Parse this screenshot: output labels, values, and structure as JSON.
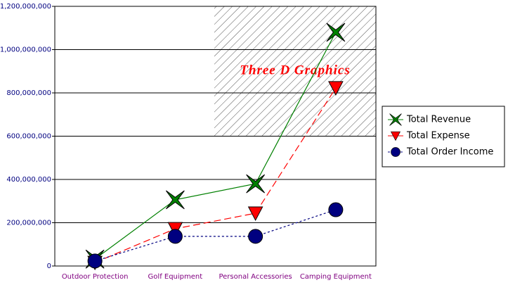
{
  "chart_data": {
    "type": "line",
    "annotation": "Three D Graphics",
    "categories": [
      "Outdoor Protection",
      "Golf Equipment",
      "Personal Accessories",
      "Camping Equipment"
    ],
    "series": [
      {
        "name": "Total Revenue",
        "color": "#008000",
        "values": [
          32000000,
          306000000,
          380000000,
          1080000000
        ]
      },
      {
        "name": "Total Expense",
        "color": "#ff0000",
        "values": [
          16000000,
          172000000,
          244000000,
          823000000
        ]
      },
      {
        "name": "Total Order Income",
        "color": "#000080",
        "values": [
          23000000,
          137000000,
          137000000,
          260000000
        ]
      }
    ],
    "ylim": [
      0,
      1200000000
    ],
    "yticks": [
      0,
      {
        "value": 200000000,
        "label": "200,000,000"
      },
      {
        "value": 400000000,
        "label": "400,000,000"
      },
      {
        "value": 600000000,
        "label": "600,000,000"
      },
      {
        "value": 800000000,
        "label": "800,000,000"
      },
      {
        "value": 1000000000,
        "label": "1,000,000,000"
      },
      {
        "value": 1200000000,
        "label": "1,200,000,000"
      }
    ],
    "grid": true
  }
}
